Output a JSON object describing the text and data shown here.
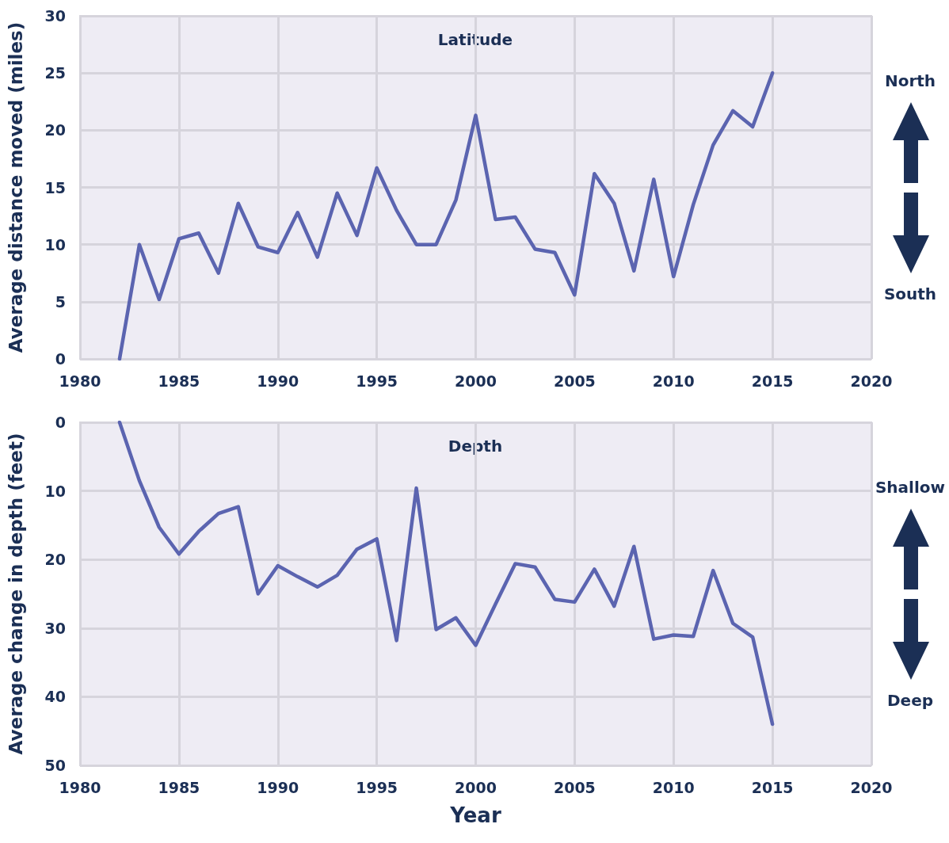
{
  "chart_data": [
    {
      "type": "line",
      "title": "Latitude",
      "ylabel": "Average distance moved (miles)",
      "annotations": [
        "North",
        "South"
      ],
      "x": [
        1982,
        1983,
        1984,
        1985,
        1986,
        1987,
        1988,
        1989,
        1990,
        1991,
        1992,
        1993,
        1994,
        1995,
        1996,
        1997,
        1998,
        1999,
        2000,
        2001,
        2002,
        2003,
        2004,
        2005,
        2006,
        2007,
        2008,
        2009,
        2010,
        2011,
        2012,
        2013,
        2014,
        2015
      ],
      "series": [
        {
          "color": "#5b64b0",
          "values": [
            0,
            10,
            5.2,
            10.5,
            11,
            7.5,
            13.6,
            9.8,
            9.3,
            12.8,
            8.9,
            14.5,
            10.8,
            16.7,
            13,
            10,
            10,
            13.9,
            21.3,
            12.2,
            12.4,
            9.6,
            9.3,
            5.6,
            16.2,
            13.6,
            7.7,
            15.7,
            7.2,
            13.5,
            18.7,
            21.7,
            20.3,
            25
          ]
        }
      ],
      "xlim": [
        1980,
        2020
      ],
      "xticks": [
        1980,
        1985,
        1990,
        1995,
        2000,
        2005,
        2010,
        2015,
        2020
      ],
      "ylim": [
        0,
        30
      ],
      "yticks": [
        0,
        5,
        10,
        15,
        20,
        25,
        30
      ],
      "grid": true
    },
    {
      "type": "line",
      "title": "Depth",
      "xlabel": "Year",
      "ylabel": "Average change in depth (feet)",
      "annotations": [
        "Shallow",
        "Deep"
      ],
      "x": [
        1982,
        1983,
        1984,
        1985,
        1986,
        1987,
        1988,
        1989,
        1990,
        1991,
        1992,
        1993,
        1994,
        1995,
        1996,
        1997,
        1998,
        1999,
        2000,
        2001,
        2002,
        2003,
        2004,
        2005,
        2006,
        2007,
        2008,
        2009,
        2010,
        2011,
        2012,
        2013,
        2014,
        2015
      ],
      "series": [
        {
          "color": "#5b64b0",
          "values": [
            0,
            8.5,
            15.3,
            19.2,
            15.9,
            13.3,
            12.3,
            25,
            20.9,
            22.5,
            24,
            22.3,
            18.5,
            17,
            31.8,
            9.6,
            30.2,
            28.5,
            32.5,
            26.5,
            20.6,
            21.1,
            25.8,
            26.2,
            21.4,
            26.8,
            18.1,
            31.6,
            31,
            31.2,
            21.6,
            29.3,
            31.3,
            44
          ]
        }
      ],
      "xlim": [
        1980,
        2020
      ],
      "xticks": [
        1980,
        1985,
        1990,
        1995,
        2000,
        2005,
        2010,
        2015,
        2020
      ],
      "ylim": [
        50,
        0
      ],
      "yticks": [
        0,
        10,
        20,
        30,
        40,
        50
      ],
      "grid": true
    }
  ]
}
